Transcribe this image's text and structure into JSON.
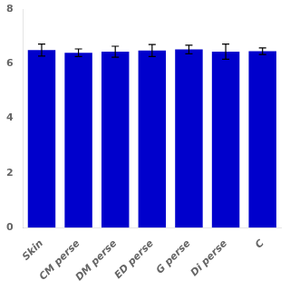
{
  "chart_data": {
    "type": "bar",
    "categories": [
      "Skin",
      "CM perse",
      "DM perse",
      "ED perse",
      "G perse",
      "Di perse",
      "C"
    ],
    "values": [
      6.5,
      6.4,
      6.44,
      6.48,
      6.52,
      6.44,
      6.46
    ],
    "errors": [
      0.22,
      0.14,
      0.2,
      0.22,
      0.16,
      0.28,
      0.12
    ],
    "color": "#0000cc",
    "ylim": [
      0,
      8
    ],
    "yticks": [
      0,
      2,
      4,
      6,
      8
    ],
    "grid": false
  }
}
